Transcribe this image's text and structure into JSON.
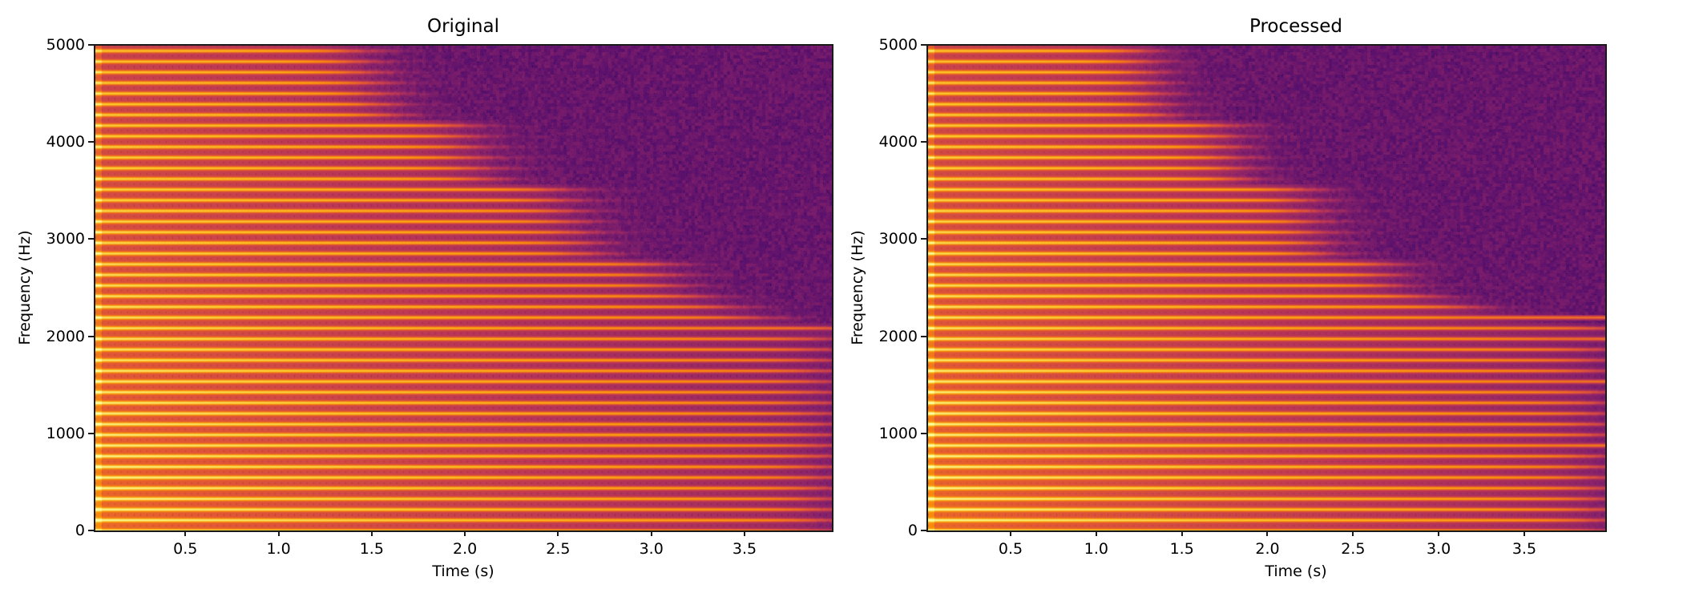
{
  "chart_data": [
    {
      "type": "heatmap",
      "subtype": "spectrogram",
      "title": "Original",
      "xlabel": "Time (s)",
      "ylabel": "Frequency (Hz)",
      "xlim": [
        0.013,
        3.973
      ],
      "ylim": [
        0,
        5000
      ],
      "xticks": [
        0.5,
        1.0,
        1.5,
        2.0,
        2.5,
        3.0,
        3.5
      ],
      "xtick_labels": [
        "0.5",
        "1.0",
        "1.5",
        "2.0",
        "2.5",
        "3.0",
        "3.5"
      ],
      "yticks": [
        0,
        1000,
        2000,
        3000,
        4000,
        5000
      ],
      "ytick_labels": [
        "0",
        "1000",
        "2000",
        "3000",
        "4000",
        "5000"
      ],
      "colormap": "inferno",
      "grid": false,
      "harmonic_spacing_hz": 110,
      "harmonic_decay": {
        "description": "upper harmonics fade into noise earlier; cutoff time decreases with frequency",
        "cutoff_at_5000hz_s": 1.1,
        "cutoff_at_2500hz_s": 3.0,
        "cutoff_below_2000hz_s": 4.0
      },
      "boosted_bands_hz": [],
      "noise_floor_color": "#6a1a72"
    },
    {
      "type": "heatmap",
      "subtype": "spectrogram",
      "title": "Processed",
      "xlabel": "Time (s)",
      "ylabel": "Frequency (Hz)",
      "xlim": [
        0.013,
        3.973
      ],
      "ylim": [
        0,
        5000
      ],
      "xticks": [
        0.5,
        1.0,
        1.5,
        2.0,
        2.5,
        3.0,
        3.5
      ],
      "xtick_labels": [
        "0.5",
        "1.0",
        "1.5",
        "2.0",
        "2.5",
        "3.0",
        "3.5"
      ],
      "yticks": [
        0,
        1000,
        2000,
        3000,
        4000,
        5000
      ],
      "ytick_labels": [
        "0",
        "1000",
        "2000",
        "3000",
        "4000",
        "5000"
      ],
      "colormap": "inferno",
      "grid": false,
      "harmonic_spacing_hz": 110,
      "harmonic_decay": {
        "description": "similar to original but faster fade; a few emphasized harmonics persist to end",
        "cutoff_at_5000hz_s": 0.95,
        "cutoff_at_2500hz_s": 2.6,
        "cutoff_below_2000hz_s": 4.0
      },
      "boosted_bands_hz": [
        880,
        1540,
        1980,
        2200
      ],
      "noise_floor_color": "#6a1a72"
    }
  ],
  "figure": {
    "panels": [
      {
        "title": "Original",
        "xlabel": "Time (s)",
        "ylabel": "Frequency (Hz)"
      },
      {
        "title": "Processed",
        "xlabel": "Time (s)",
        "ylabel": "Frequency (Hz)"
      }
    ]
  }
}
